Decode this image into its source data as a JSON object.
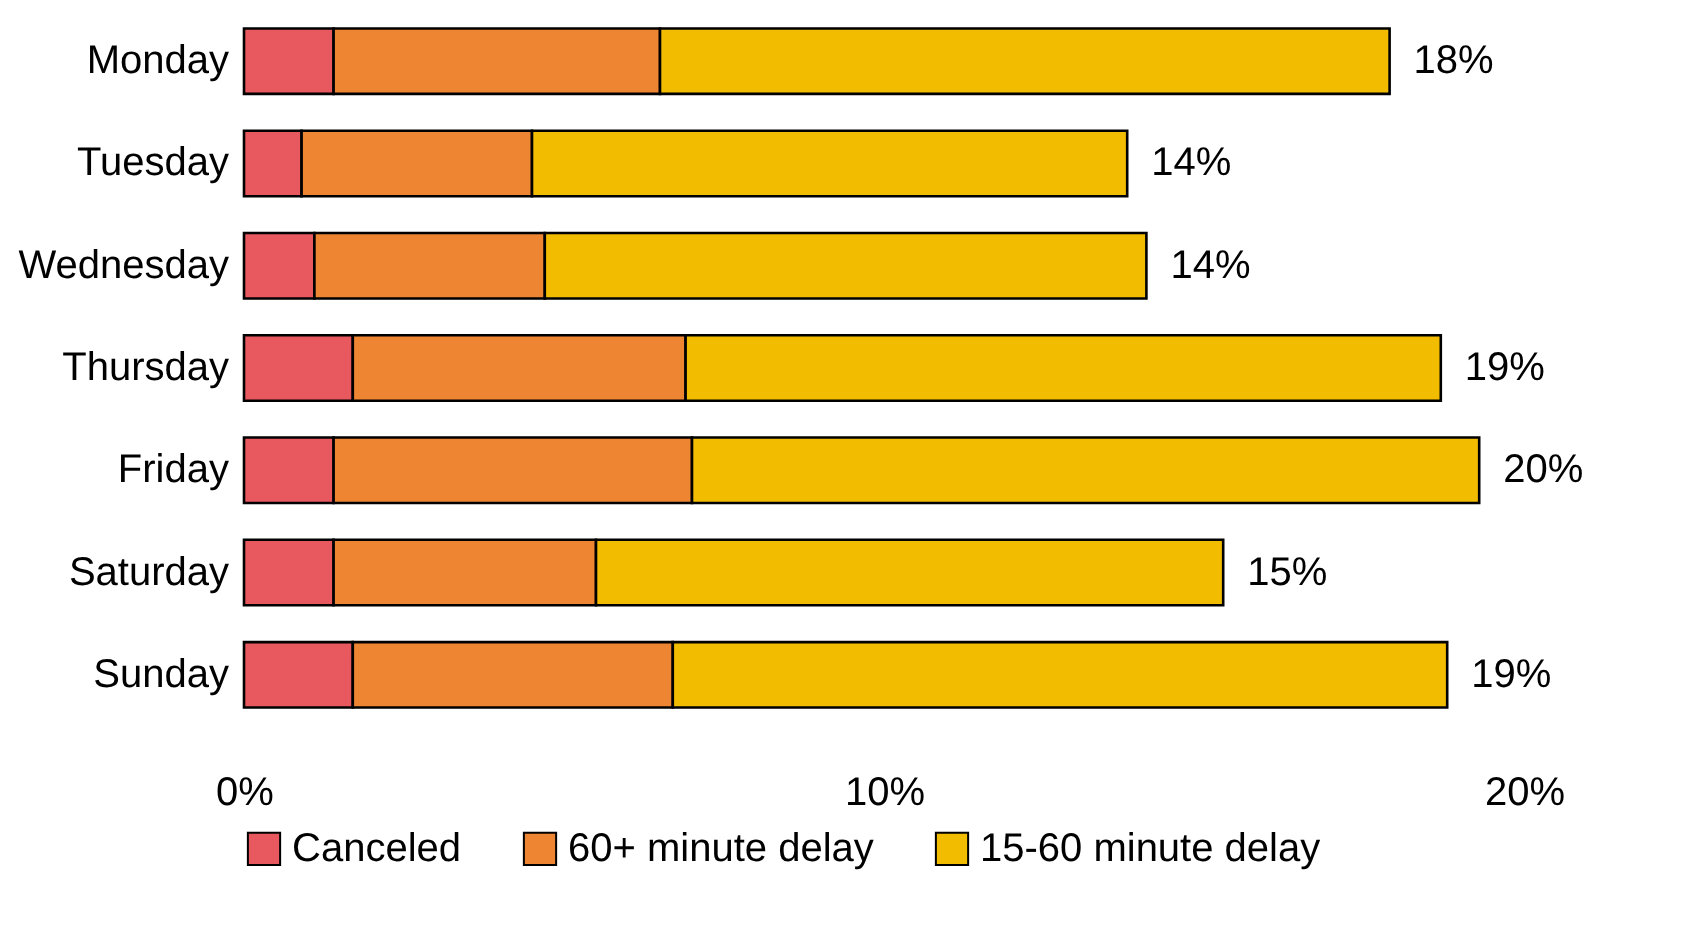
{
  "chart_data": {
    "type": "bar",
    "orientation": "horizontal",
    "stacked": true,
    "categories": [
      "Monday",
      "Tuesday",
      "Wednesday",
      "Thursday",
      "Friday",
      "Saturday",
      "Sunday"
    ],
    "series": [
      {
        "name": "Canceled",
        "color": "#e8585f",
        "values": [
          1.4,
          0.9,
          1.1,
          1.7,
          1.4,
          1.4,
          1.7
        ]
      },
      {
        "name": "60+ minute delay",
        "color": "#ee8533",
        "values": [
          5.1,
          3.6,
          3.6,
          5.2,
          5.6,
          4.1,
          5.0
        ]
      },
      {
        "name": "15-60 minute delay",
        "color": "#f2bc00",
        "values": [
          11.4,
          9.3,
          9.4,
          11.8,
          12.3,
          9.8,
          12.1
        ]
      }
    ],
    "totals": [
      "18%",
      "14%",
      "14%",
      "19%",
      "20%",
      "15%",
      "19%"
    ],
    "xlim": [
      0,
      20
    ],
    "xticks": [
      {
        "value": 0,
        "label": "0%"
      },
      {
        "value": 10,
        "label": "10%"
      },
      {
        "value": 20,
        "label": "20%"
      }
    ],
    "legend": "bottom",
    "grid": false
  }
}
